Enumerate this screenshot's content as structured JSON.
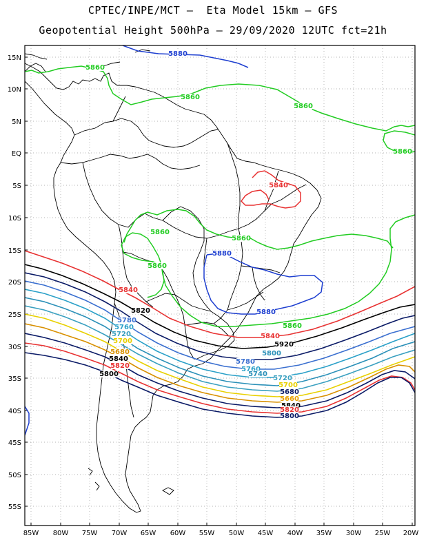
{
  "header": {
    "line1": "CPTEC/INPE/MCT –  Eta Model 15km – GFS",
    "line2": "Geopotential Height 500hPa – 29/09/2020 12UTC fct=21h"
  },
  "axes": {
    "lat_labels": [
      "15N",
      "10N",
      "5N",
      "EQ",
      "5S",
      "10S",
      "15S",
      "20S",
      "25S",
      "30S",
      "35S",
      "40S",
      "45S",
      "50S",
      "55S"
    ],
    "lon_labels": [
      "85W",
      "80W",
      "75W",
      "70W",
      "65W",
      "60W",
      "55W",
      "50W",
      "45W",
      "40W",
      "35W",
      "30W",
      "25W",
      "20W"
    ]
  },
  "colors": {
    "c5920": "#000000",
    "c5880": "#1e3fd0",
    "c5860": "#22cc22",
    "c5840": "#e83232",
    "c5820": "#000000",
    "c5800": "#0a1a66",
    "c5780": "#3a6fd0",
    "c5760": "#2aa0c8",
    "c5740": "#2a90b8",
    "c5720": "#3aa0c0",
    "c5700": "#e8d000",
    "c5680": "#d89000",
    "c5660": "#e8a000",
    "coast": "#000000",
    "grid": "#9a9a9a"
  },
  "contour_labels": [
    {
      "text": "5880",
      "color": "#1e3fd0"
    },
    {
      "text": "5860",
      "color": "#22cc22"
    },
    {
      "text": "5860",
      "color": "#22cc22"
    },
    {
      "text": "5860",
      "color": "#22cc22"
    },
    {
      "text": "5860",
      "color": "#22cc22"
    },
    {
      "text": "5860",
      "color": "#22cc22"
    },
    {
      "text": "5860",
      "color": "#22cc22"
    },
    {
      "text": "5860",
      "color": "#22cc22"
    },
    {
      "text": "5840",
      "color": "#e83232"
    },
    {
      "text": "5880",
      "color": "#1e3fd0"
    },
    {
      "text": "5840",
      "color": "#e83232"
    },
    {
      "text": "5880",
      "color": "#1e3fd0"
    },
    {
      "text": "5860",
      "color": "#22cc22"
    },
    {
      "text": "5840",
      "color": "#e83232"
    },
    {
      "text": "5920",
      "color": "#000000"
    },
    {
      "text": "5820",
      "color": "#000000"
    },
    {
      "text": "5780",
      "color": "#3a6fd0"
    },
    {
      "text": "5760",
      "color": "#2aa0c8"
    },
    {
      "text": "5720",
      "color": "#3aa0c0"
    },
    {
      "text": "5700",
      "color": "#e8d000"
    },
    {
      "text": "5680",
      "color": "#d89000"
    },
    {
      "text": "5840",
      "color": "#000000"
    },
    {
      "text": "5820",
      "color": "#e83232"
    },
    {
      "text": "5800",
      "color": "#000000"
    },
    {
      "text": "5800",
      "color": "#2a90b8"
    },
    {
      "text": "5780",
      "color": "#3a6fd0"
    },
    {
      "text": "5760",
      "color": "#2aa0c8"
    },
    {
      "text": "5740",
      "color": "#2a90b8"
    },
    {
      "text": "5720",
      "color": "#3aa0c0"
    },
    {
      "text": "5700",
      "color": "#e8d000"
    },
    {
      "text": "5680",
      "color": "#0a1a66"
    },
    {
      "text": "5660",
      "color": "#e8a000"
    },
    {
      "text": "5840",
      "color": "#000000"
    },
    {
      "text": "5820",
      "color": "#e83232"
    },
    {
      "text": "5800",
      "color": "#0a1a66"
    }
  ]
}
